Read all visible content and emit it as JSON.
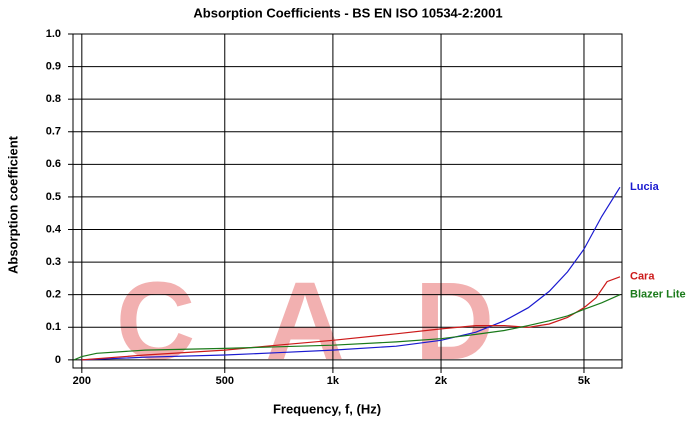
{
  "chart_data": {
    "type": "line",
    "title": "Absorption Coefficients - BS EN ISO 10534-2:2001",
    "x_label": "Frequency, f, (Hz)",
    "y_label": "Absorption coefficient",
    "watermark": "CAD",
    "xscale": "log",
    "grid": true,
    "xlim": [
      189,
      6380
    ],
    "ylim": [
      -0.025,
      1.0
    ],
    "xticks": [
      200,
      500,
      {
        "value": 1000,
        "label": "1k"
      },
      {
        "value": 2000,
        "label": "2k"
      },
      {
        "value": 5000,
        "label": "5k"
      }
    ],
    "yticks": [
      0,
      0.1,
      0.2,
      0.3,
      0.4,
      0.5,
      0.6,
      0.7,
      0.8,
      0.9,
      {
        "value": 1.0,
        "label": "1.0"
      }
    ],
    "series": [
      {
        "name": "Lucia",
        "color": "#1a1ad0",
        "x": [
          200,
          300,
          500,
          700,
          1000,
          1500,
          2000,
          2500,
          3000,
          3500,
          4000,
          4500,
          5000,
          5600,
          6300
        ],
        "values": [
          0.0,
          0.008,
          0.015,
          0.022,
          0.03,
          0.042,
          0.06,
          0.085,
          0.12,
          0.16,
          0.21,
          0.27,
          0.34,
          0.44,
          0.53
        ]
      },
      {
        "name": "Cara",
        "color": "#cc1a1a",
        "x": [
          200,
          300,
          500,
          700,
          1000,
          1500,
          2000,
          2500,
          3000,
          3500,
          4000,
          4500,
          5000,
          5400,
          5800,
          6300
        ],
        "values": [
          0.0,
          0.015,
          0.03,
          0.045,
          0.06,
          0.08,
          0.095,
          0.105,
          0.105,
          0.1,
          0.11,
          0.13,
          0.16,
          0.19,
          0.24,
          0.255
        ]
      },
      {
        "name": "Blazer Lite",
        "color": "#1a7a1a",
        "x": [
          190,
          200,
          220,
          300,
          500,
          700,
          1000,
          1500,
          2000,
          2500,
          3000,
          3500,
          4000,
          4500,
          5000,
          5600,
          6300
        ],
        "values": [
          0.0,
          0.01,
          0.02,
          0.03,
          0.035,
          0.04,
          0.045,
          0.055,
          0.065,
          0.078,
          0.09,
          0.105,
          0.12,
          0.135,
          0.155,
          0.175,
          0.2
        ]
      }
    ]
  }
}
